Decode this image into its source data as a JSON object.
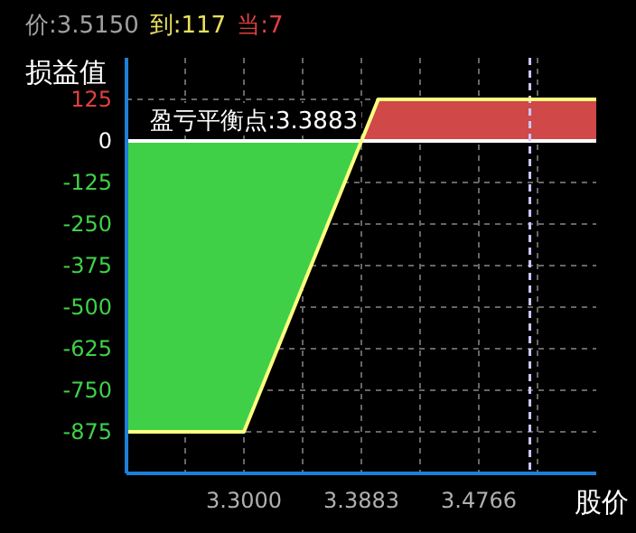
{
  "chart_data": {
    "type": "area",
    "xlabel": "股价",
    "ylabel": "损益值",
    "annotations": [
      "价:3.5150",
      "到:117",
      "当:7",
      {
        "text": "盈亏平衡点:3.3883",
        "x": 3.3883,
        "y": 0
      }
    ],
    "series": [
      {
        "color": "#40d048",
        "x": [
          3.2117,
          3.3,
          3.3883
        ],
        "values": [
          -875,
          -875,
          0
        ]
      },
      {
        "color": "#d04848",
        "x": [
          3.3883,
          3.401,
          3.5649
        ],
        "values": [
          0,
          125,
          125
        ]
      },
      {
        "type": "line",
        "color": "#ffff80",
        "x": [
          3.2117,
          3.3,
          3.401,
          3.5649
        ],
        "values": [
          -875,
          -875,
          125,
          125
        ]
      }
    ],
    "xlim": [
      3.2117,
      3.5649
    ],
    "xticks": [
      {
        "value": 3.25585,
        "label": null
      },
      {
        "value": 3.3,
        "label": "3.3000"
      },
      {
        "value": 3.34415,
        "label": null
      },
      {
        "value": 3.3883,
        "label": "3.3883"
      },
      {
        "value": 3.43245,
        "label": null
      },
      {
        "value": 3.4766,
        "label": "3.4766"
      },
      {
        "value": 3.52075,
        "label": null
      }
    ],
    "ylim": [
      -1000,
      250
    ],
    "yticks": [
      125,
      0,
      -125,
      -250,
      -375,
      -500,
      -625,
      -750,
      -875
    ],
    "ref_lines": [
      {
        "axis": "y",
        "value": 0,
        "color": "#ffffff",
        "line_style": "solid"
      },
      {
        "axis": "x",
        "value": 3.515,
        "color": "#c8c8ff",
        "line_style": "dashed"
      }
    ],
    "grid": true
  }
}
